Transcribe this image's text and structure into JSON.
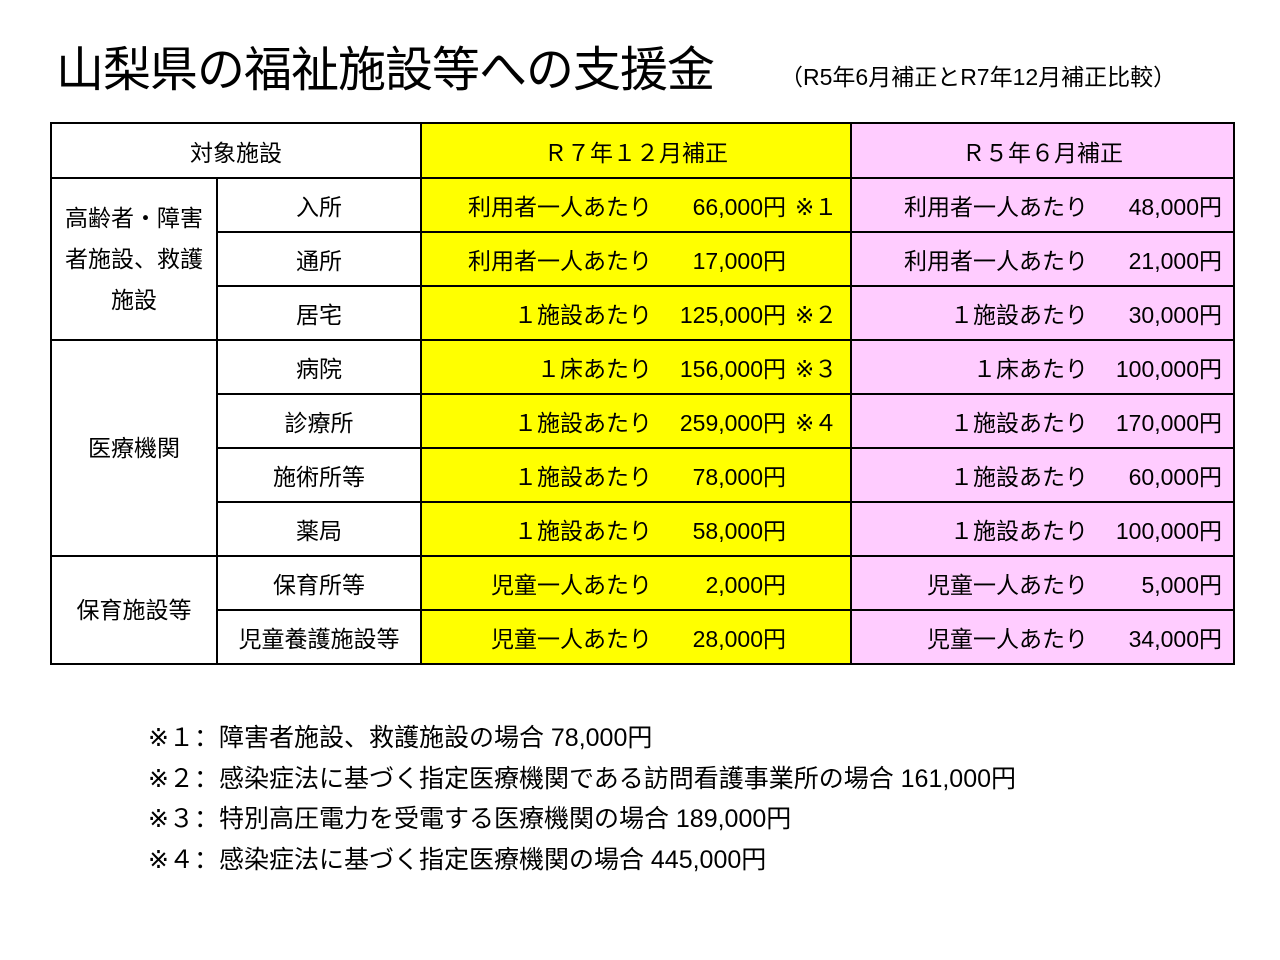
{
  "title": "山梨県の福祉施設等への支援金",
  "subtitle": "（R5年6月補正とR7年12月補正比較）",
  "header": {
    "target": "対象施設",
    "r7": "Ｒ７年１２月補正",
    "r5": "Ｒ５年６月補正"
  },
  "groups": [
    {
      "label": "高齢者・障害者施設、救護施設",
      "rows": [
        {
          "name": "入所",
          "r7": {
            "per": "利用者一人あたり",
            "amount": "66,000円",
            "note": "※１"
          },
          "r5": {
            "per": "利用者一人あたり",
            "amount": "48,000円"
          }
        },
        {
          "name": "通所",
          "r7": {
            "per": "利用者一人あたり",
            "amount": "17,000円",
            "note": ""
          },
          "r5": {
            "per": "利用者一人あたり",
            "amount": "21,000円"
          }
        },
        {
          "name": "居宅",
          "r7": {
            "per": "１施設あたり",
            "amount": "125,000円",
            "note": "※２"
          },
          "r5": {
            "per": "１施設あたり",
            "amount": "30,000円"
          }
        }
      ]
    },
    {
      "label": "医療機関",
      "rows": [
        {
          "name": "病院",
          "r7": {
            "per": "１床あたり",
            "amount": "156,000円",
            "note": "※３"
          },
          "r5": {
            "per": "１床あたり",
            "amount": "100,000円"
          }
        },
        {
          "name": "診療所",
          "r7": {
            "per": "１施設あたり",
            "amount": "259,000円",
            "note": "※４"
          },
          "r5": {
            "per": "１施設あたり",
            "amount": "170,000円"
          }
        },
        {
          "name": "施術所等",
          "r7": {
            "per": "１施設あたり",
            "amount": "78,000円",
            "note": ""
          },
          "r5": {
            "per": "１施設あたり",
            "amount": "60,000円"
          }
        },
        {
          "name": "薬局",
          "r7": {
            "per": "１施設あたり",
            "amount": "58,000円",
            "note": ""
          },
          "r5": {
            "per": "１施設あたり",
            "amount": "100,000円"
          }
        }
      ]
    },
    {
      "label": "保育施設等",
      "rows": [
        {
          "name": "保育所等",
          "r7": {
            "per": "児童一人あたり",
            "amount": "2,000円",
            "note": ""
          },
          "r5": {
            "per": "児童一人あたり",
            "amount": "5,000円"
          }
        },
        {
          "name": "児童養護施設等",
          "r7": {
            "per": "児童一人あたり",
            "amount": "28,000円",
            "note": ""
          },
          "r5": {
            "per": "児童一人あたり",
            "amount": "34,000円"
          }
        }
      ]
    }
  ],
  "notes": [
    "※１：障害者施設、救護施設の場合 78,000円",
    "※２：感染症法に基づく指定医療機関である訪問看護事業所の場合 161,000円",
    "※３：特別高圧電力を受電する医療機関の場合 189,000円",
    "※４：感染症法に基づく指定医療機関の場合 445,000円"
  ],
  "colors": {
    "r7": "#ffff00",
    "r5": "#ffccff"
  }
}
